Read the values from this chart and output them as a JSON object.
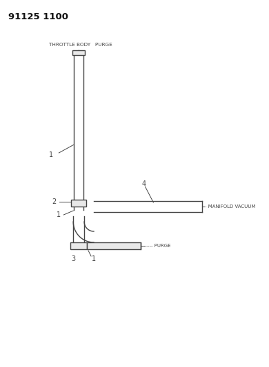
{
  "title": "91125 1100",
  "bg_color": "#ffffff",
  "throttle_body_label": "THROTTLE BODY   PURGE",
  "manifold_vacuum_label": "- MANIFOLD VACUUM",
  "purge_label": "--- PURGE",
  "label1_1": "1",
  "label1_2": "1",
  "label1_3": "1",
  "label2": "2",
  "label3": "3",
  "label4": "4",
  "line_color": "#444444",
  "hose_fill": "#e8e8e8",
  "hose_edge": "#444444",
  "hose_fill2": "#d0d0d0"
}
